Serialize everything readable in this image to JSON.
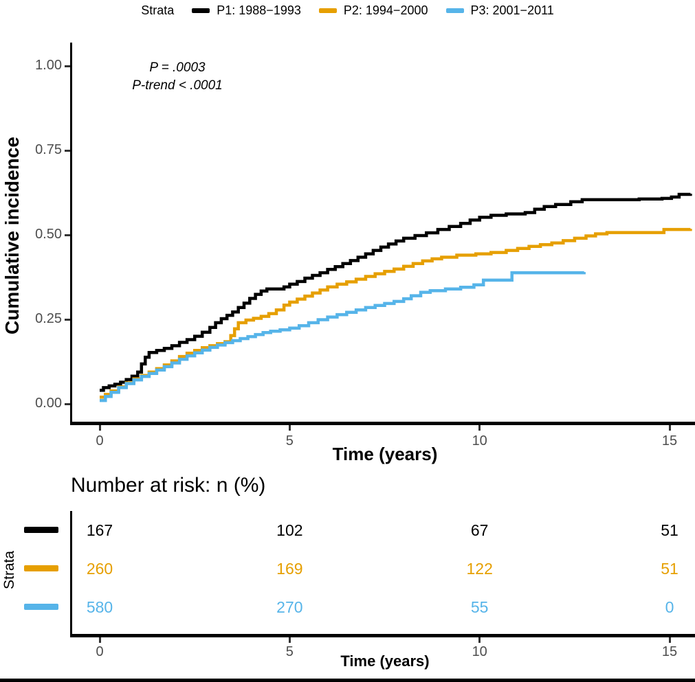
{
  "palette": {
    "p1": "#000000",
    "p2": "#E69F00",
    "p3": "#56B4E9",
    "tick_text": "#4d4d4d",
    "axis": "#000000"
  },
  "legend": {
    "title": "Strata",
    "items": [
      {
        "label": "P1: 1988−1993",
        "color": "#000000"
      },
      {
        "label": "P2: 1994−2000",
        "color": "#E69F00"
      },
      {
        "label": "P3: 2001−2011",
        "color": "#56B4E9"
      }
    ]
  },
  "annotation": {
    "line1": "P = .0003",
    "line2": "P-trend < .0001"
  },
  "chart_data": {
    "type": "line",
    "subtype": "kaplan-meier-step-cumulative-incidence",
    "title": "",
    "xlabel": "Time (years)",
    "ylabel": "Cumulative incidence",
    "xlim": [
      0,
      15.7
    ],
    "ylim": [
      0,
      1.0
    ],
    "x_ticks": [
      0,
      5,
      10,
      15
    ],
    "y_ticks": [
      {
        "value": 0.0,
        "label": "0.00"
      },
      {
        "value": 0.25,
        "label": "0.25"
      },
      {
        "value": 0.5,
        "label": "0.50"
      },
      {
        "value": 0.75,
        "label": "0.75"
      },
      {
        "value": 1.0,
        "label": "1.00"
      }
    ],
    "grid": false,
    "legend_position": "top",
    "series": [
      {
        "name": "P1: 1988−1993",
        "color": "#000000",
        "points": [
          [
            0,
            0.04
          ],
          [
            0.1,
            0.048
          ],
          [
            0.25,
            0.053
          ],
          [
            0.4,
            0.058
          ],
          [
            0.55,
            0.064
          ],
          [
            0.7,
            0.072
          ],
          [
            0.85,
            0.082
          ],
          [
            1.0,
            0.094
          ],
          [
            1.1,
            0.118
          ],
          [
            1.2,
            0.138
          ],
          [
            1.3,
            0.152
          ],
          [
            1.5,
            0.158
          ],
          [
            1.7,
            0.164
          ],
          [
            1.9,
            0.172
          ],
          [
            2.1,
            0.182
          ],
          [
            2.3,
            0.19
          ],
          [
            2.5,
            0.2
          ],
          [
            2.7,
            0.212
          ],
          [
            2.9,
            0.226
          ],
          [
            3.05,
            0.24
          ],
          [
            3.2,
            0.252
          ],
          [
            3.35,
            0.262
          ],
          [
            3.5,
            0.272
          ],
          [
            3.65,
            0.285
          ],
          [
            3.8,
            0.298
          ],
          [
            3.95,
            0.312
          ],
          [
            4.1,
            0.324
          ],
          [
            4.25,
            0.334
          ],
          [
            4.4,
            0.34
          ],
          [
            4.85,
            0.346
          ],
          [
            5.0,
            0.354
          ],
          [
            5.2,
            0.362
          ],
          [
            5.4,
            0.372
          ],
          [
            5.6,
            0.38
          ],
          [
            5.8,
            0.388
          ],
          [
            6.0,
            0.398
          ],
          [
            6.2,
            0.406
          ],
          [
            6.4,
            0.415
          ],
          [
            6.6,
            0.424
          ],
          [
            6.8,
            0.434
          ],
          [
            7.0,
            0.444
          ],
          [
            7.2,
            0.454
          ],
          [
            7.4,
            0.464
          ],
          [
            7.6,
            0.473
          ],
          [
            7.8,
            0.482
          ],
          [
            8.0,
            0.49
          ],
          [
            8.3,
            0.498
          ],
          [
            8.6,
            0.506
          ],
          [
            8.9,
            0.516
          ],
          [
            9.2,
            0.525
          ],
          [
            9.5,
            0.534
          ],
          [
            9.75,
            0.544
          ],
          [
            10.0,
            0.552
          ],
          [
            10.3,
            0.558
          ],
          [
            10.7,
            0.562
          ],
          [
            11.2,
            0.566
          ],
          [
            11.45,
            0.576
          ],
          [
            11.7,
            0.584
          ],
          [
            12.0,
            0.59
          ],
          [
            12.4,
            0.598
          ],
          [
            12.7,
            0.604
          ],
          [
            14.2,
            0.606
          ],
          [
            14.8,
            0.608
          ],
          [
            15.05,
            0.612
          ],
          [
            15.25,
            0.62
          ],
          [
            15.55,
            0.622
          ]
        ]
      },
      {
        "name": "P2: 1994−2000",
        "color": "#E69F00",
        "points": [
          [
            0,
            0.02
          ],
          [
            0.15,
            0.028
          ],
          [
            0.3,
            0.038
          ],
          [
            0.5,
            0.05
          ],
          [
            0.7,
            0.062
          ],
          [
            0.9,
            0.074
          ],
          [
            1.1,
            0.084
          ],
          [
            1.3,
            0.094
          ],
          [
            1.5,
            0.104
          ],
          [
            1.7,
            0.115
          ],
          [
            1.9,
            0.127
          ],
          [
            2.1,
            0.14
          ],
          [
            2.3,
            0.15
          ],
          [
            2.5,
            0.158
          ],
          [
            2.7,
            0.166
          ],
          [
            2.9,
            0.172
          ],
          [
            3.1,
            0.178
          ],
          [
            3.3,
            0.184
          ],
          [
            3.45,
            0.202
          ],
          [
            3.55,
            0.222
          ],
          [
            3.65,
            0.24
          ],
          [
            3.85,
            0.248
          ],
          [
            4.05,
            0.253
          ],
          [
            4.25,
            0.259
          ],
          [
            4.45,
            0.267
          ],
          [
            4.65,
            0.278
          ],
          [
            4.85,
            0.292
          ],
          [
            5.0,
            0.301
          ],
          [
            5.2,
            0.31
          ],
          [
            5.4,
            0.319
          ],
          [
            5.6,
            0.328
          ],
          [
            5.8,
            0.337
          ],
          [
            6.0,
            0.346
          ],
          [
            6.25,
            0.354
          ],
          [
            6.5,
            0.361
          ],
          [
            6.75,
            0.369
          ],
          [
            7.0,
            0.377
          ],
          [
            7.25,
            0.385
          ],
          [
            7.5,
            0.392
          ],
          [
            7.75,
            0.399
          ],
          [
            8.0,
            0.407
          ],
          [
            8.25,
            0.415
          ],
          [
            8.5,
            0.423
          ],
          [
            8.75,
            0.429
          ],
          [
            9.0,
            0.434
          ],
          [
            9.4,
            0.44
          ],
          [
            9.9,
            0.444
          ],
          [
            10.3,
            0.448
          ],
          [
            10.7,
            0.454
          ],
          [
            11.0,
            0.46
          ],
          [
            11.3,
            0.466
          ],
          [
            11.6,
            0.471
          ],
          [
            11.9,
            0.476
          ],
          [
            12.2,
            0.483
          ],
          [
            12.5,
            0.49
          ],
          [
            12.8,
            0.497
          ],
          [
            13.05,
            0.503
          ],
          [
            13.35,
            0.507
          ],
          [
            14.85,
            0.516
          ],
          [
            15.55,
            0.518
          ]
        ]
      },
      {
        "name": "P3: 2001−2011",
        "color": "#56B4E9",
        "points": [
          [
            0,
            0.01
          ],
          [
            0.15,
            0.022
          ],
          [
            0.3,
            0.034
          ],
          [
            0.5,
            0.048
          ],
          [
            0.7,
            0.06
          ],
          [
            0.9,
            0.071
          ],
          [
            1.1,
            0.081
          ],
          [
            1.3,
            0.09
          ],
          [
            1.5,
            0.1
          ],
          [
            1.7,
            0.11
          ],
          [
            1.9,
            0.121
          ],
          [
            2.1,
            0.132
          ],
          [
            2.3,
            0.142
          ],
          [
            2.5,
            0.151
          ],
          [
            2.7,
            0.159
          ],
          [
            2.9,
            0.167
          ],
          [
            3.1,
            0.174
          ],
          [
            3.3,
            0.181
          ],
          [
            3.5,
            0.187
          ],
          [
            3.7,
            0.193
          ],
          [
            3.9,
            0.199
          ],
          [
            4.1,
            0.205
          ],
          [
            4.3,
            0.211
          ],
          [
            4.5,
            0.215
          ],
          [
            4.75,
            0.219
          ],
          [
            5.0,
            0.224
          ],
          [
            5.25,
            0.231
          ],
          [
            5.5,
            0.24
          ],
          [
            5.75,
            0.249
          ],
          [
            6.0,
            0.257
          ],
          [
            6.25,
            0.264
          ],
          [
            6.5,
            0.271
          ],
          [
            6.75,
            0.278
          ],
          [
            7.0,
            0.285
          ],
          [
            7.25,
            0.291
          ],
          [
            7.5,
            0.297
          ],
          [
            7.75,
            0.303
          ],
          [
            8.0,
            0.311
          ],
          [
            8.2,
            0.32
          ],
          [
            8.45,
            0.33
          ],
          [
            8.7,
            0.335
          ],
          [
            9.1,
            0.34
          ],
          [
            9.5,
            0.345
          ],
          [
            9.85,
            0.352
          ],
          [
            10.1,
            0.366
          ],
          [
            10.85,
            0.388
          ],
          [
            12.75,
            0.39
          ]
        ]
      }
    ]
  },
  "risk_table": {
    "title": "Number at risk: n (%)",
    "axis_label": "Strata",
    "xlabel": "Time (years)",
    "x_ticks": [
      0,
      5,
      10,
      15
    ],
    "rows": [
      {
        "name": "P1: 1988−1993",
        "color": "#000000",
        "values": [
          "167",
          "102",
          "67",
          "51"
        ]
      },
      {
        "name": "P2: 1994−2000",
        "color": "#E69F00",
        "values": [
          "260",
          "169",
          "122",
          "51"
        ]
      },
      {
        "name": "P3: 2001−2011",
        "color": "#56B4E9",
        "values": [
          "580",
          "270",
          "55",
          "0"
        ]
      }
    ]
  }
}
